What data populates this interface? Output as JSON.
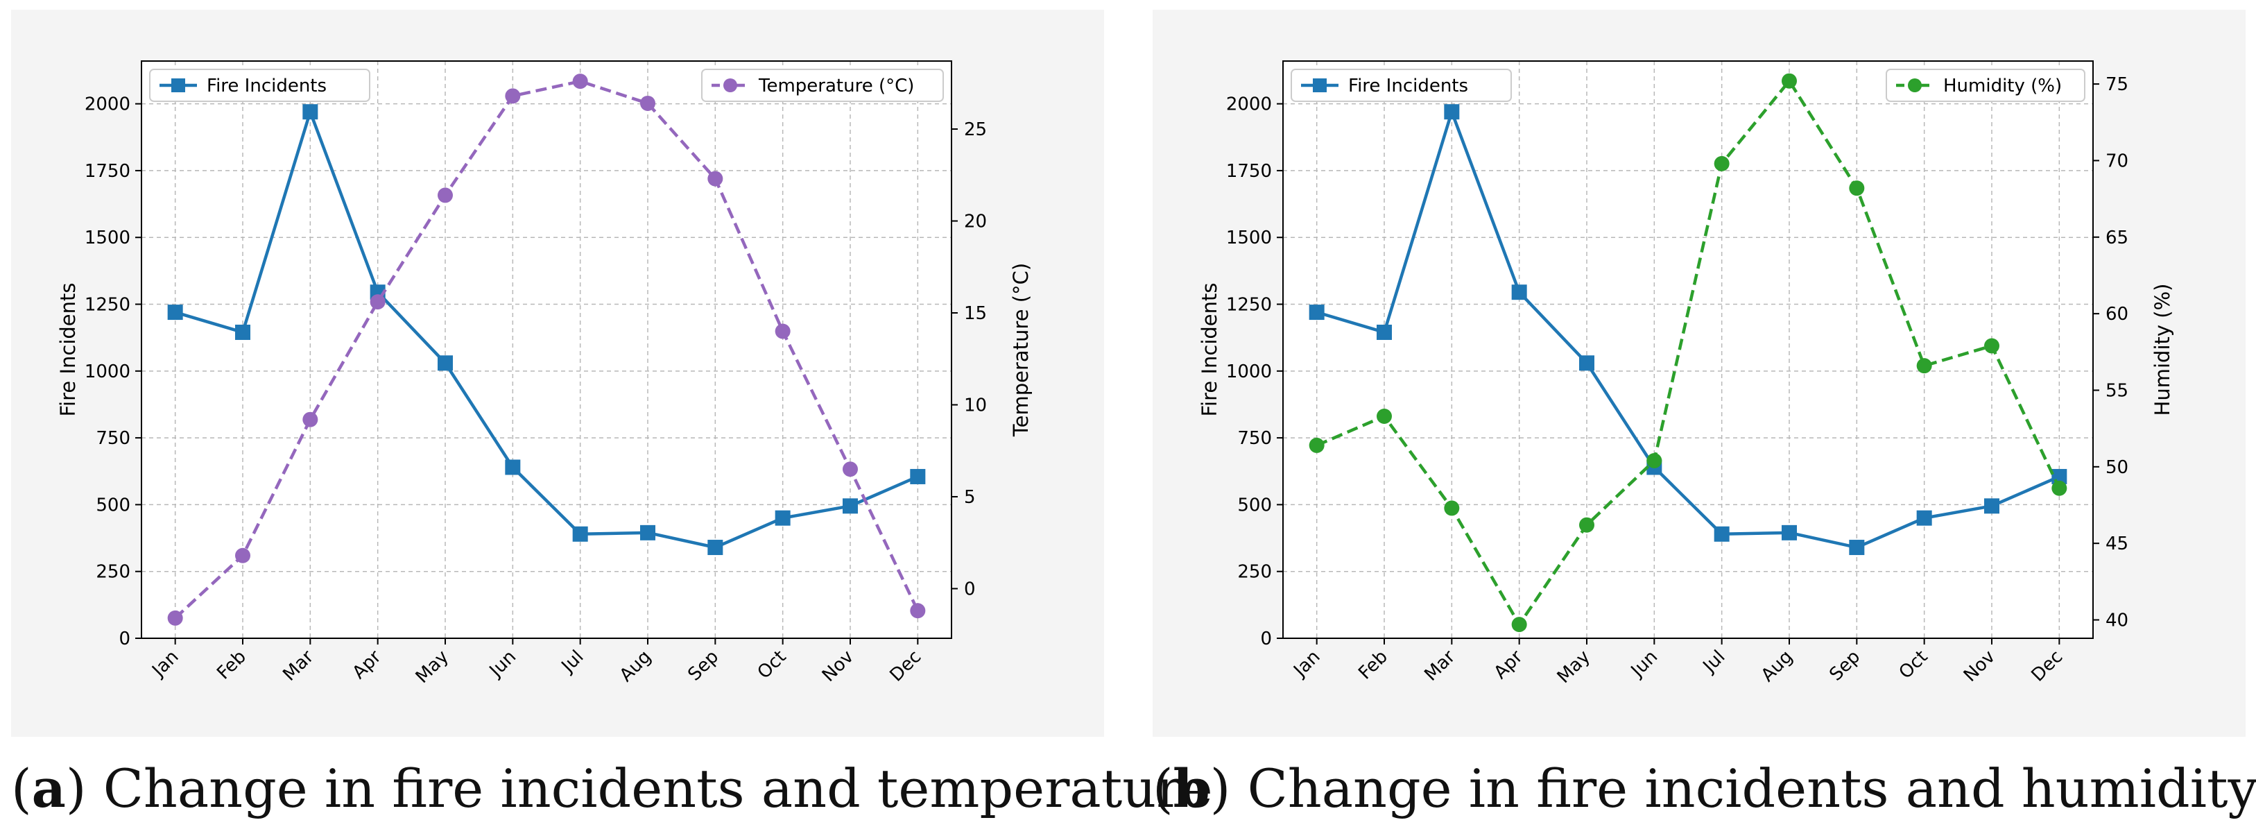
{
  "chart_data": [
    {
      "id": "a",
      "type": "line",
      "caption_letter": "a",
      "caption_text": "Change in fire incidents and temperature",
      "categories": [
        "Jan",
        "Feb",
        "Mar",
        "Apr",
        "May",
        "Jun",
        "Jul",
        "Aug",
        "Sep",
        "Oct",
        "Nov",
        "Dec"
      ],
      "xlabel": "",
      "ylabel_left": "Fire Incidents",
      "ylabel_right": "Temperature (°C)",
      "ylim_left": [
        0,
        2160
      ],
      "yticks_left": [
        0,
        250,
        500,
        750,
        1000,
        1250,
        1500,
        1750,
        2000
      ],
      "ylim_right": [
        -2.7,
        28.7
      ],
      "yticks_right": [
        0,
        5,
        10,
        15,
        20,
        25
      ],
      "grid": true,
      "series": [
        {
          "name": "Fire Incidents",
          "axis": "left",
          "color": "#1f77b4",
          "style": "solid",
          "marker": "square",
          "legend_position": "top-left",
          "values": [
            1220,
            1145,
            1970,
            1295,
            1030,
            640,
            390,
            395,
            340,
            450,
            495,
            605
          ]
        },
        {
          "name": "Temperature (°C)",
          "axis": "right",
          "color": "#9467bd",
          "style": "dashed",
          "marker": "circle",
          "legend_position": "top-right",
          "values": [
            -1.6,
            1.8,
            9.2,
            15.6,
            21.4,
            26.8,
            27.6,
            26.4,
            22.3,
            14.0,
            6.5,
            -1.2
          ]
        }
      ]
    },
    {
      "id": "b",
      "type": "line",
      "caption_letter": "b",
      "caption_text": "Change in fire incidents and humidity",
      "categories": [
        "Jan",
        "Feb",
        "Mar",
        "Apr",
        "May",
        "Jun",
        "Jul",
        "Aug",
        "Sep",
        "Oct",
        "Nov",
        "Dec"
      ],
      "xlabel": "",
      "ylabel_left": "Fire Incidents",
      "ylabel_right": "Humidity (%)",
      "ylim_left": [
        0,
        2160
      ],
      "yticks_left": [
        0,
        250,
        500,
        750,
        1000,
        1250,
        1500,
        1750,
        2000
      ],
      "ylim_right": [
        38.8,
        76.5
      ],
      "yticks_right": [
        40,
        45,
        50,
        55,
        60,
        65,
        70,
        75
      ],
      "grid": true,
      "series": [
        {
          "name": "Fire Incidents",
          "axis": "left",
          "color": "#1f77b4",
          "style": "solid",
          "marker": "square",
          "legend_position": "top-left",
          "values": [
            1220,
            1145,
            1970,
            1295,
            1030,
            640,
            390,
            395,
            340,
            450,
            495,
            605
          ]
        },
        {
          "name": "Humidity (%)",
          "axis": "right",
          "color": "#2ca02c",
          "style": "dashed",
          "marker": "circle",
          "legend_position": "top-right",
          "values": [
            51.4,
            53.3,
            47.3,
            39.7,
            46.2,
            50.4,
            69.8,
            75.2,
            68.2,
            56.6,
            57.9,
            48.6
          ]
        }
      ]
    }
  ]
}
